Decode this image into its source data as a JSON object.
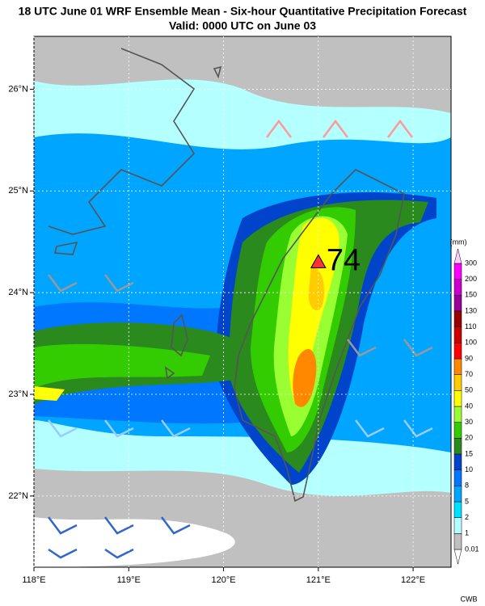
{
  "title": "18 UTC June 01 WRF Ensemble Mean - Six-hour Quantitative Precipitation Forecast",
  "subtitle": "Valid: 0000 UTC on June 03",
  "map": {
    "xlim": [
      118,
      122.4
    ],
    "ylim": [
      21.3,
      26.52
    ],
    "lon_ticks": [
      {
        "value": 118,
        "label": "118°E"
      },
      {
        "value": 119,
        "label": "119°E"
      },
      {
        "value": 120,
        "label": "120°E"
      },
      {
        "value": 121,
        "label": "121°E"
      },
      {
        "value": 122,
        "label": "122°E"
      }
    ],
    "lat_ticks": [
      {
        "value": 22,
        "label": "22°N"
      },
      {
        "value": 23,
        "label": "23°N"
      },
      {
        "value": 24,
        "label": "24°N"
      },
      {
        "value": 25,
        "label": "25°N"
      },
      {
        "value": 26,
        "label": "26°N"
      }
    ],
    "max": {
      "value": 74,
      "lon": 121.0,
      "lat": 24.3
    }
  },
  "colorbar": {
    "unit": "(mm)",
    "levels": [
      0.01,
      1,
      2,
      5,
      8,
      10,
      15,
      20,
      30,
      40,
      50,
      70,
      90,
      100,
      110,
      130,
      150,
      200,
      300
    ],
    "colors": [
      "#ffffff",
      "#c0c0c0",
      "#b4ffff",
      "#00e1ff",
      "#00a5ff",
      "#0077ff",
      "#0044cc",
      "#2b8a1e",
      "#33cc00",
      "#99ff33",
      "#ffff00",
      "#ffcc00",
      "#ff8800",
      "#ff0000",
      "#cc0000",
      "#990000",
      "#990099",
      "#cc00cc",
      "#ff00ff",
      "#ffccff"
    ]
  },
  "credit": "CWB"
}
